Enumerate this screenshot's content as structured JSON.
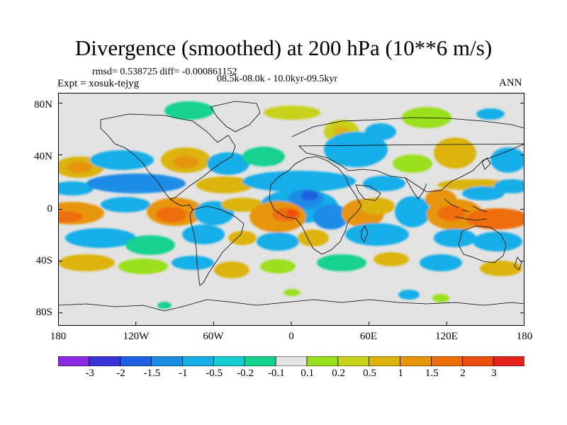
{
  "title": "Divergence (smoothed) at 200 hPa (10**6 m/s)",
  "stats": "rmsd= 0.538725 diff= -0.000861152",
  "experiment": "Expt = xosuk-tejyg",
  "period": "08.5k-08.0k - 10.0kyr-09.5kyr",
  "season": "ANN",
  "axes": {
    "lat_labels": [
      "80N",
      "40N",
      "0",
      "40S",
      "80S"
    ],
    "lon_labels": [
      "180",
      "120W",
      "60W",
      "0",
      "60E",
      "120E",
      "180"
    ]
  },
  "colorbar": {
    "colors": [
      "#8a2be2",
      "#3a32d8",
      "#1f60e0",
      "#1a8ce6",
      "#16aee8",
      "#15cdd2",
      "#14d28e",
      "#e3e3e3",
      "#9ae01e",
      "#c8d21a",
      "#dcb410",
      "#e7950a",
      "#ee6e08",
      "#ef4c10",
      "#e6231d"
    ],
    "labels": [
      "-3",
      "-2",
      "-1.5",
      "-1",
      "-0.5",
      "-0.2",
      "-0.1",
      "0.1",
      "0.2",
      "0.5",
      "1",
      "1.5",
      "2",
      "3"
    ]
  },
  "map_background": "#e3e3e3"
}
